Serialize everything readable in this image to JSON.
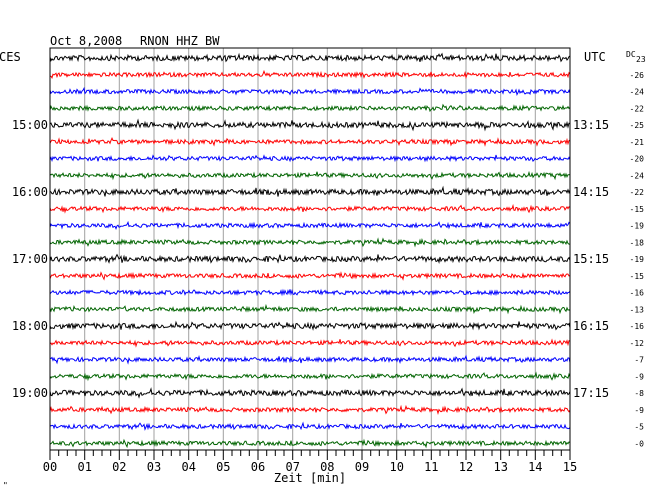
{
  "header": {
    "date": "Oct 8,2008",
    "station": "RNON HHZ BW",
    "left_zone": "CES",
    "right_zone": "UTC",
    "dc_label": "DC",
    "dc_first": "23",
    "corner_mark": "\""
  },
  "left_time_labels": [
    "15:00",
    "16:00",
    "17:00",
    "18:00",
    "19:00"
  ],
  "right_time_labels": [
    "13:15",
    "14:15",
    "15:15",
    "16:15",
    "17:15"
  ],
  "dc_offsets": [
    "-26",
    "-24",
    "-22",
    "-25",
    "-21",
    "-20",
    "-24",
    "-22",
    "-15",
    "-19",
    "-18",
    "-19",
    "-15",
    "-16",
    "-13",
    "-16",
    "-12",
    "-7",
    "-9",
    "-8",
    "-9",
    "-5",
    "-0"
  ],
  "x_tick_labels": [
    "00",
    "01",
    "02",
    "03",
    "04",
    "05",
    "06",
    "07",
    "08",
    "09",
    "10",
    "11",
    "12",
    "13",
    "14",
    "15"
  ],
  "xlabel": "Zeit [min]",
  "trace_colors": [
    "#000000",
    "#ff0000",
    "#0000ff",
    "#006400"
  ],
  "grid_color": "#a0a0a0",
  "chart_data": {
    "type": "line",
    "title": "",
    "xlabel": "Zeit [min]",
    "xlim": [
      0,
      15
    ],
    "traces": 24,
    "traces_per_hour": 4,
    "minutes_per_trace": 15,
    "color_cycle": [
      "black",
      "red",
      "blue",
      "green"
    ],
    "grid": true
  }
}
